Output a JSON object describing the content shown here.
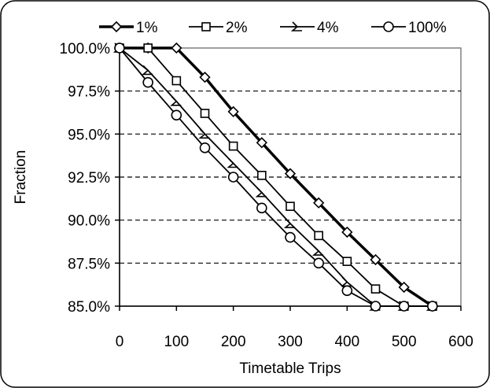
{
  "chart_data": {
    "type": "line",
    "title": "",
    "xlabel": "Timetable Trips",
    "ylabel": "Fraction",
    "xlim": [
      0,
      600
    ],
    "ylim": [
      85.0,
      100.0
    ],
    "xticks": [
      0,
      100,
      200,
      300,
      400,
      500,
      600
    ],
    "xtick_labels": [
      "0",
      "100",
      "200",
      "300",
      "400",
      "500",
      "600"
    ],
    "yticks": [
      85.0,
      87.5,
      90.0,
      92.5,
      95.0,
      97.5,
      100.0
    ],
    "ytick_labels": [
      "85.0%",
      "87.5%",
      "90.0%",
      "92.5%",
      "95.0%",
      "97.5%",
      "100.0%"
    ],
    "grid": "horizontal dashed",
    "legend_position": "top",
    "x": [
      0,
      50,
      100,
      150,
      200,
      250,
      300,
      350,
      400,
      450,
      500,
      550
    ],
    "series": [
      {
        "name": "1%",
        "marker": "diamond",
        "color": "#000000",
        "values": [
          100.0,
          100.0,
          100.0,
          98.3,
          96.3,
          94.5,
          92.7,
          91.0,
          89.3,
          87.7,
          86.1,
          85.0
        ]
      },
      {
        "name": "2%",
        "marker": "square",
        "color": "#000000",
        "values": [
          100.0,
          100.0,
          98.1,
          96.2,
          94.3,
          92.6,
          90.8,
          89.1,
          87.6,
          86.0,
          85.0,
          85.0
        ]
      },
      {
        "name": "4%",
        "marker": "triangle",
        "color": "#000000",
        "values": [
          100.0,
          98.7,
          96.9,
          95.0,
          93.3,
          91.6,
          89.8,
          88.2,
          86.4,
          85.0,
          85.0,
          85.0
        ]
      },
      {
        "name": "100%",
        "marker": "circle",
        "color": "#000000",
        "values": [
          100.0,
          98.0,
          96.1,
          94.2,
          92.5,
          90.7,
          89.0,
          87.5,
          85.9,
          85.0,
          85.0,
          85.0
        ]
      }
    ]
  }
}
